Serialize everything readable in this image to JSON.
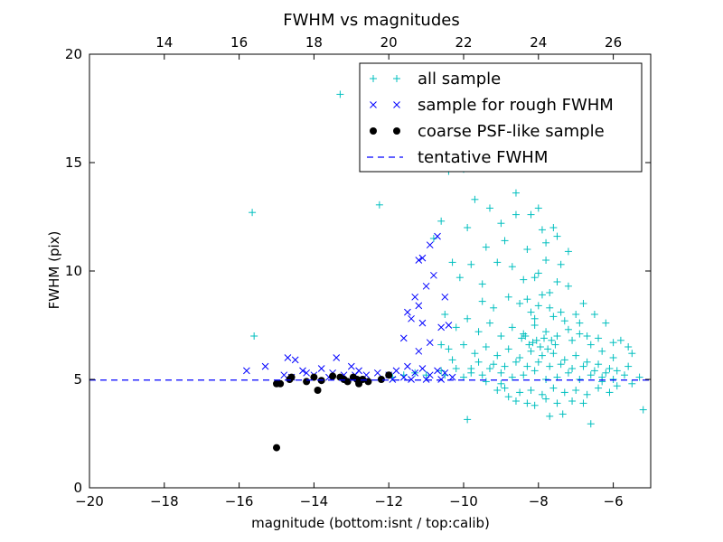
{
  "chart_data": {
    "type": "scatter",
    "title": "FWHM vs magnitudes",
    "xlabel": "magnitude (bottom:isnt / top:calib)",
    "ylabel": "FWHM (pix)",
    "xlim": [
      -20,
      -5
    ],
    "ylim": [
      0,
      20
    ],
    "x_ticks": [
      "−20",
      "−18",
      "−16",
      "−14",
      "−12",
      "−10",
      "−8",
      "−6"
    ],
    "x_tick_values": [
      -20,
      -18,
      -16,
      -14,
      -12,
      -10,
      -8,
      -6
    ],
    "y_ticks": [
      "0",
      "5",
      "10",
      "15",
      "20"
    ],
    "y_tick_values": [
      0,
      5,
      10,
      15,
      20
    ],
    "top_axis": {
      "offset": 32,
      "tick_labels": [
        "14",
        "16",
        "18",
        "20",
        "22",
        "24",
        "26"
      ],
      "tick_values": [
        14,
        16,
        18,
        20,
        22,
        24,
        26
      ]
    },
    "grid": false,
    "legend_position": "top-right",
    "colors": {
      "all": "#00bfbf",
      "rough": "#0000ff",
      "psf": "#000000",
      "fwhm": "#0000ff"
    },
    "series": [
      {
        "name": "all sample",
        "marker": "+",
        "points": [
          [
            -13.3,
            18.15
          ],
          [
            -15.65,
            12.7
          ],
          [
            -15.6,
            7.0
          ],
          [
            -12.25,
            13.05
          ],
          [
            -9.9,
            3.15
          ],
          [
            -6.6,
            2.95
          ],
          [
            -5.2,
            3.6
          ],
          [
            -8.1,
            3.8
          ],
          [
            -7.7,
            3.3
          ],
          [
            -7.35,
            3.4
          ],
          [
            -8.8,
            4.2
          ],
          [
            -9.1,
            4.5
          ],
          [
            -11.9,
            5.1
          ],
          [
            -11.6,
            5.2
          ],
          [
            -11.3,
            5.3
          ],
          [
            -11.0,
            5.2
          ],
          [
            -10.6,
            5.4
          ],
          [
            -10.5,
            5.2
          ],
          [
            -10.2,
            5.5
          ],
          [
            -10.0,
            5.1
          ],
          [
            -9.8,
            5.3
          ],
          [
            -9.5,
            5.2
          ],
          [
            -9.3,
            5.5
          ],
          [
            -9.0,
            5.3
          ],
          [
            -8.7,
            5.1
          ],
          [
            -8.4,
            5.2
          ],
          [
            -8.1,
            5.4
          ],
          [
            -7.8,
            5.0
          ],
          [
            -7.5,
            5.1
          ],
          [
            -7.2,
            5.3
          ],
          [
            -6.9,
            5.0
          ],
          [
            -6.6,
            5.2
          ],
          [
            -6.3,
            5.1
          ],
          [
            -6.0,
            5.0
          ],
          [
            -5.7,
            5.2
          ],
          [
            -5.3,
            5.1
          ],
          [
            -10.9,
            16.2
          ],
          [
            -10.7,
            15.0
          ],
          [
            -10.4,
            14.6
          ],
          [
            -10.0,
            14.7
          ],
          [
            -9.6,
            16.1
          ],
          [
            -9.2,
            16.7
          ],
          [
            -8.8,
            15.7
          ],
          [
            -8.4,
            16.3
          ],
          [
            -8.0,
            15.6
          ],
          [
            -9.7,
            13.3
          ],
          [
            -9.3,
            12.9
          ],
          [
            -9.0,
            12.2
          ],
          [
            -8.6,
            13.6
          ],
          [
            -8.2,
            12.6
          ],
          [
            -7.9,
            11.9
          ],
          [
            -7.6,
            12.0
          ],
          [
            -10.6,
            12.3
          ],
          [
            -10.3,
            10.4
          ],
          [
            -10.8,
            11.5
          ],
          [
            -10.1,
            9.7
          ],
          [
            -9.8,
            10.3
          ],
          [
            -9.5,
            9.4
          ],
          [
            -9.1,
            10.4
          ],
          [
            -8.7,
            10.2
          ],
          [
            -8.4,
            9.6
          ],
          [
            -8.1,
            9.7
          ],
          [
            -7.8,
            10.5
          ],
          [
            -7.5,
            9.5
          ],
          [
            -7.2,
            9.3
          ],
          [
            -6.8,
            8.5
          ],
          [
            -6.5,
            8.0
          ],
          [
            -6.2,
            7.6
          ],
          [
            -5.8,
            6.8
          ],
          [
            -5.5,
            6.2
          ],
          [
            -10.5,
            8.0
          ],
          [
            -10.2,
            7.4
          ],
          [
            -9.9,
            7.8
          ],
          [
            -9.6,
            7.2
          ],
          [
            -9.3,
            7.6
          ],
          [
            -9.0,
            7.0
          ],
          [
            -8.7,
            7.4
          ],
          [
            -8.4,
            7.1
          ],
          [
            -8.1,
            7.5
          ],
          [
            -7.8,
            7.2
          ],
          [
            -7.5,
            7.0
          ],
          [
            -7.2,
            7.3
          ],
          [
            -6.9,
            7.1
          ],
          [
            -6.6,
            6.6
          ],
          [
            -6.3,
            6.3
          ],
          [
            -6.0,
            6.0
          ],
          [
            -10.4,
            6.4
          ],
          [
            -10.0,
            6.6
          ],
          [
            -9.7,
            6.2
          ],
          [
            -9.4,
            6.5
          ],
          [
            -9.1,
            6.1
          ],
          [
            -8.8,
            6.4
          ],
          [
            -8.5,
            6.0
          ],
          [
            -8.2,
            6.3
          ],
          [
            -7.9,
            6.1
          ],
          [
            -7.6,
            6.2
          ],
          [
            -7.3,
            5.9
          ],
          [
            -7.0,
            6.1
          ],
          [
            -6.7,
            5.8
          ],
          [
            -6.4,
            5.7
          ],
          [
            -6.1,
            5.5
          ],
          [
            -5.9,
            5.4
          ],
          [
            -5.6,
            5.6
          ],
          [
            -9.6,
            5.8
          ],
          [
            -9.2,
            5.7
          ],
          [
            -8.9,
            5.6
          ],
          [
            -8.6,
            5.8
          ],
          [
            -8.3,
            5.6
          ],
          [
            -8.0,
            5.8
          ],
          [
            -7.7,
            5.6
          ],
          [
            -7.4,
            5.7
          ],
          [
            -7.1,
            5.5
          ],
          [
            -6.8,
            5.6
          ],
          [
            -6.5,
            5.4
          ],
          [
            -6.2,
            5.3
          ],
          [
            -8.9,
            4.6
          ],
          [
            -8.5,
            4.4
          ],
          [
            -8.2,
            4.5
          ],
          [
            -7.9,
            4.3
          ],
          [
            -7.6,
            4.6
          ],
          [
            -7.3,
            4.4
          ],
          [
            -7.0,
            4.5
          ],
          [
            -6.7,
            4.3
          ],
          [
            -6.4,
            4.6
          ],
          [
            -6.1,
            4.4
          ],
          [
            -8.6,
            4.0
          ],
          [
            -8.3,
            3.9
          ],
          [
            -7.8,
            4.1
          ],
          [
            -7.5,
            3.9
          ],
          [
            -7.1,
            4.0
          ],
          [
            -6.8,
            3.9
          ],
          [
            -8.0,
            8.4
          ],
          [
            -7.9,
            8.9
          ],
          [
            -8.2,
            8.1
          ],
          [
            -8.1,
            7.8
          ],
          [
            -7.7,
            8.3
          ],
          [
            -7.6,
            7.9
          ],
          [
            -8.3,
            8.7
          ],
          [
            -8.5,
            8.5
          ],
          [
            -7.4,
            8.1
          ],
          [
            -7.3,
            7.7
          ],
          [
            -8.05,
            6.8
          ],
          [
            -7.95,
            6.5
          ],
          [
            -8.15,
            6.7
          ],
          [
            -7.85,
            6.9
          ],
          [
            -7.75,
            6.4
          ],
          [
            -8.25,
            6.6
          ],
          [
            -8.35,
            7.0
          ],
          [
            -7.65,
            6.8
          ],
          [
            -7.55,
            6.6
          ],
          [
            -8.45,
            6.9
          ],
          [
            -8.0,
            9.9
          ],
          [
            -7.7,
            9.0
          ],
          [
            -8.8,
            8.8
          ],
          [
            -9.2,
            8.3
          ],
          [
            -9.5,
            8.6
          ],
          [
            -7.0,
            8.0
          ],
          [
            -6.9,
            7.6
          ],
          [
            -7.1,
            6.8
          ],
          [
            -6.7,
            7.0
          ],
          [
            -6.4,
            6.9
          ],
          [
            -6.0,
            6.7
          ],
          [
            -5.6,
            6.5
          ],
          [
            -5.9,
            4.7
          ],
          [
            -5.5,
            4.8
          ],
          [
            -6.3,
            4.9
          ],
          [
            -10.3,
            5.9
          ],
          [
            -10.6,
            6.6
          ],
          [
            -9.8,
            5.5
          ],
          [
            -9.4,
            4.9
          ],
          [
            -9.0,
            4.8
          ],
          [
            -7.4,
            10.3
          ],
          [
            -7.8,
            11.3
          ],
          [
            -8.3,
            11.0
          ],
          [
            -8.9,
            11.4
          ],
          [
            -9.4,
            11.1
          ],
          [
            -9.9,
            12.0
          ],
          [
            -8.6,
            12.6
          ],
          [
            -8.0,
            12.9
          ],
          [
            -7.5,
            11.6
          ],
          [
            -7.2,
            10.9
          ]
        ]
      },
      {
        "name": "sample for rough FWHM",
        "marker": "x",
        "points": [
          [
            -15.8,
            5.4
          ],
          [
            -15.3,
            5.6
          ],
          [
            -14.7,
            6.0
          ],
          [
            -14.5,
            5.9
          ],
          [
            -14.3,
            5.4
          ],
          [
            -14.0,
            5.2
          ],
          [
            -13.8,
            5.5
          ],
          [
            -13.5,
            5.3
          ],
          [
            -13.4,
            6.0
          ],
          [
            -13.2,
            5.2
          ],
          [
            -13.0,
            5.6
          ],
          [
            -12.8,
            5.4
          ],
          [
            -12.6,
            5.2
          ],
          [
            -12.3,
            5.3
          ],
          [
            -12.0,
            5.2
          ],
          [
            -11.8,
            5.4
          ],
          [
            -11.6,
            5.1
          ],
          [
            -11.5,
            5.6
          ],
          [
            -11.3,
            5.3
          ],
          [
            -11.1,
            5.5
          ],
          [
            -10.9,
            5.2
          ],
          [
            -10.7,
            5.4
          ],
          [
            -10.5,
            5.3
          ],
          [
            -10.3,
            5.1
          ],
          [
            -11.9,
            5.0
          ],
          [
            -11.4,
            5.0
          ],
          [
            -11.0,
            5.0
          ],
          [
            -10.6,
            5.0
          ],
          [
            -10.9,
            6.7
          ],
          [
            -11.2,
            6.3
          ],
          [
            -11.4,
            7.8
          ],
          [
            -11.1,
            7.6
          ],
          [
            -10.6,
            7.4
          ],
          [
            -11.2,
            8.4
          ],
          [
            -11.0,
            9.3
          ],
          [
            -10.8,
            9.8
          ],
          [
            -11.3,
            8.8
          ],
          [
            -11.1,
            10.6
          ],
          [
            -10.9,
            11.2
          ],
          [
            -10.7,
            11.6
          ],
          [
            -11.5,
            8.1
          ],
          [
            -10.5,
            8.8
          ],
          [
            -11.2,
            10.5
          ],
          [
            -10.4,
            7.5
          ],
          [
            -11.6,
            6.9
          ],
          [
            -14.8,
            5.2
          ],
          [
            -14.6,
            5.1
          ],
          [
            -14.2,
            5.3
          ],
          [
            -13.6,
            5.1
          ],
          [
            -12.9,
            5.2
          ]
        ]
      },
      {
        "name": "coarse PSF-like sample",
        "marker": "o",
        "points": [
          [
            -15.0,
            1.85
          ],
          [
            -15.0,
            4.8
          ],
          [
            -14.9,
            4.8
          ],
          [
            -14.6,
            5.1
          ],
          [
            -14.2,
            4.9
          ],
          [
            -14.0,
            5.1
          ],
          [
            -13.9,
            4.5
          ],
          [
            -13.8,
            4.95
          ],
          [
            -13.5,
            5.15
          ],
          [
            -13.3,
            5.1
          ],
          [
            -13.1,
            4.9
          ],
          [
            -12.95,
            5.1
          ],
          [
            -12.8,
            4.8
          ],
          [
            -12.7,
            5.0
          ],
          [
            -12.55,
            4.9
          ],
          [
            -12.2,
            5.0
          ],
          [
            -12.0,
            5.2
          ],
          [
            -13.2,
            5.0
          ],
          [
            -12.85,
            5.0
          ],
          [
            -14.65,
            5.0
          ]
        ]
      },
      {
        "name": "tentative FWHM",
        "line_style": "dashed",
        "x": [
          -20,
          -5
        ],
        "y": [
          4.97,
          4.97
        ]
      }
    ]
  }
}
